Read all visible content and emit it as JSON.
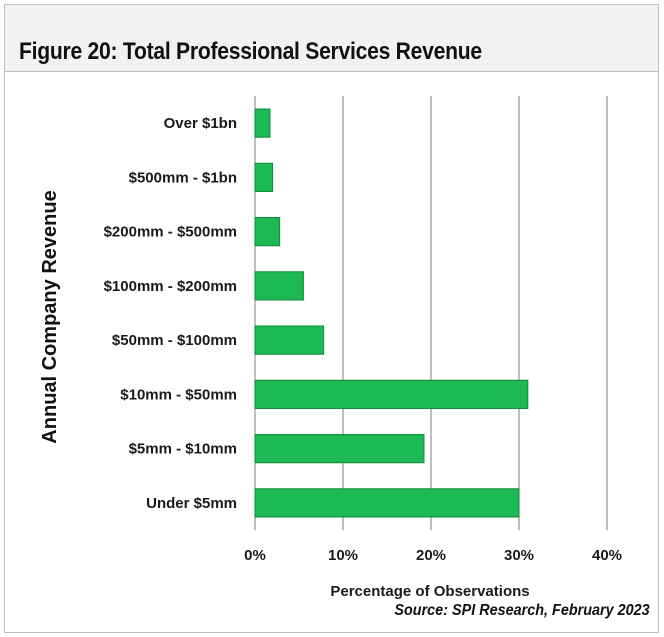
{
  "figure": {
    "title": "Figure 20:  Total Professional Services Revenue",
    "source": "Source: SPI Research, February 2023"
  },
  "colors": {
    "bar": "#1db954",
    "bar_edge": "#0f8a3a",
    "grid": "#7f7f7f"
  },
  "chart_data": {
    "type": "bar",
    "orientation": "horizontal",
    "categories": [
      "Over $1bn",
      "$500mm - $1bn",
      "$200mm - $500mm",
      "$100mm - $200mm",
      "$50mm - $100mm",
      "$10mm - $50mm",
      "$5mm - $10mm",
      "Under $5mm"
    ],
    "values": [
      1.7,
      2.0,
      2.8,
      5.5,
      7.8,
      31.0,
      19.2,
      30.0
    ],
    "xlabel": "Percentage of Observations",
    "ylabel": "Annual Company Revenue",
    "xlim": [
      0,
      40
    ],
    "xticks": [
      "0%",
      "10%",
      "20%",
      "30%",
      "40%"
    ],
    "grid": "vertical"
  }
}
